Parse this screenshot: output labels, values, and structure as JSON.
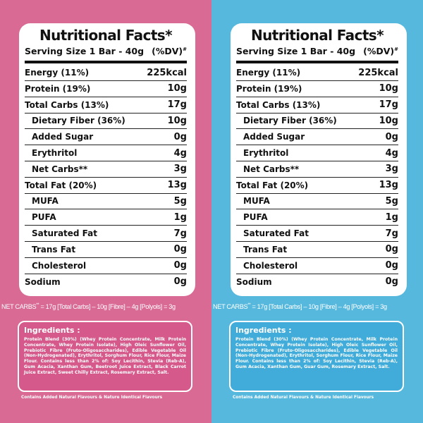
{
  "panels": [
    {
      "title": "Nutritional Facts*",
      "serving": "Serving Size 1 Bar - 40g",
      "dv": "(%DV)",
      "dv_mark": "#",
      "rows": [
        {
          "label": "Energy (11%)",
          "value": "225kcal",
          "indent": false
        },
        {
          "label": "Protein (19%)",
          "value": "10g",
          "indent": false
        },
        {
          "label": "Total Carbs (13%)",
          "value": "17g",
          "indent": false
        },
        {
          "label": "Dietary Fiber (36%)",
          "value": "10g",
          "indent": true
        },
        {
          "label": "Added Sugar",
          "value": "0g",
          "indent": true
        },
        {
          "label": "Erythritol",
          "value": "4g",
          "indent": true
        },
        {
          "label": "Net Carbs**",
          "value": "3g",
          "indent": true
        },
        {
          "label": "Total Fat (20%)",
          "value": "13g",
          "indent": false
        },
        {
          "label": "MUFA",
          "value": "5g",
          "indent": true
        },
        {
          "label": "PUFA",
          "value": "1g",
          "indent": true
        },
        {
          "label": "Saturated Fat",
          "value": "7g",
          "indent": true
        },
        {
          "label": "Trans Fat",
          "value": "0g",
          "indent": true
        },
        {
          "label": "Cholesterol",
          "value": "0g",
          "indent": true
        },
        {
          "label": "Sodium",
          "value": "0g",
          "indent": false
        }
      ],
      "net_carbs_label": "NET CARBS",
      "net_carbs_mark": "**",
      "net_carbs_formula": " = 17g [Total Carbs] – 10g [Fibre] – 4g [Polyols] = 3g",
      "ingredients_title": "Ingredients :",
      "ingredients_text": "Protein Blend (30%) (Whey Protein Concentrate, Milk Protein Concentrate, Whey Protein Isolate), High Oleic Sunflower Oil, Prebiotic Fibre (Fruto-Oligosaccharides), Edible Vegetable Oil (Non-Hydrogenated), Erythritol, Sorghum Flour, Rice Flour, Maize Flour. Contains less than 2% of: Soy Lecithin, Stevia (Reb-A), Gum Acacia, Xanthan Gum, Beetroot Juice Extract, Black Carrot Juice Extract, Sweet Chilly Extract, Rosemary Extract, Salt.",
      "footnote": "Contains Added Natural Flavours & Nature Identical Flavours",
      "color": "#d86a94"
    },
    {
      "title": "Nutritional Facts*",
      "serving": "Serving Size 1 Bar - 40g",
      "dv": "(%DV)",
      "dv_mark": "#",
      "rows": [
        {
          "label": "Energy (11%)",
          "value": "225kcal",
          "indent": false
        },
        {
          "label": "Protein (19%)",
          "value": "10g",
          "indent": false
        },
        {
          "label": "Total Carbs (13%)",
          "value": "17g",
          "indent": false
        },
        {
          "label": "Dietary Fiber (36%)",
          "value": "10g",
          "indent": true
        },
        {
          "label": "Added Sugar",
          "value": "0g",
          "indent": true
        },
        {
          "label": "Erythritol",
          "value": "4g",
          "indent": true
        },
        {
          "label": "Net Carbs**",
          "value": "3g",
          "indent": true
        },
        {
          "label": "Total Fat (20%)",
          "value": "13g",
          "indent": false
        },
        {
          "label": "MUFA",
          "value": "5g",
          "indent": true
        },
        {
          "label": "PUFA",
          "value": "1g",
          "indent": true
        },
        {
          "label": "Saturated Fat",
          "value": "7g",
          "indent": true
        },
        {
          "label": "Trans Fat",
          "value": "0g",
          "indent": true
        },
        {
          "label": "Cholesterol",
          "value": "0g",
          "indent": true
        },
        {
          "label": "Sodium",
          "value": "0g",
          "indent": false
        }
      ],
      "net_carbs_label": "NET CARBS",
      "net_carbs_mark": "**",
      "net_carbs_formula": " = 17g [Total Carbs] – 10g [Fibre] – 4g [Polyols] = 3g",
      "ingredients_title": "Ingredients :",
      "ingredients_text": "Protein Blend (30%) (Whey Protein Concentrate, Milk Protein Concentrate, Whey Protein Isolate), High Oleic Sunflower Oil, Prebiotic Fibre (Fruto-Oligosaccharides), Edible Vegetable Oil (Non-Hydrogenated), Erythritol, Sorghum Flour, Rice Flour, Maize Flour. Contains less than 2% of: Soy Lecithin, Stevia (Reb-A), Gum Acacia, Xanthan Gum, Guar Gum, Rosemary Extract, Salt.",
      "footnote": "Contains Added Natural Flavours & Nature Identical Flavours",
      "color": "#57b8de"
    }
  ]
}
